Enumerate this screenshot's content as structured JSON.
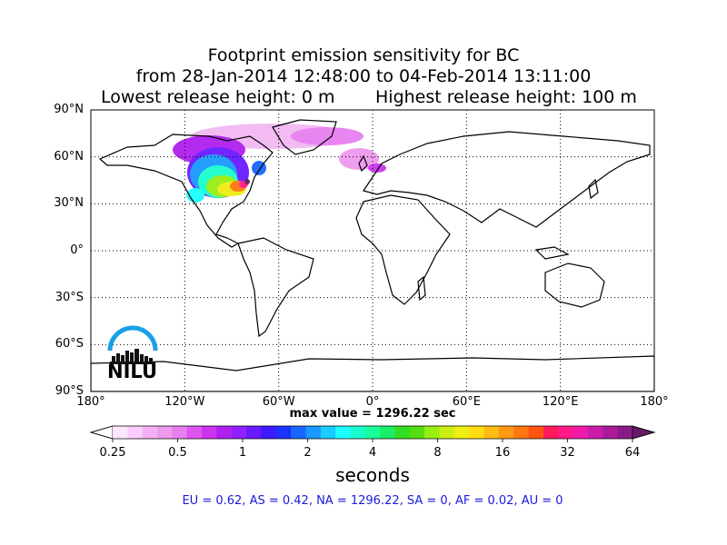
{
  "title": {
    "line1": "Footprint emission sensitivity for BC",
    "line2": "from 28-Jan-2014 12:48:00 to 04-Feb-2014 13:11:00",
    "line3": "Lowest release height: 0 m",
    "line4": "Highest release height: 100 m"
  },
  "map": {
    "lat_labels": [
      "90°N",
      "60°N",
      "30°N",
      "0°",
      "30°S",
      "60°S",
      "90°S"
    ],
    "lon_labels": [
      "180°",
      "120°W",
      "60°W",
      "0°",
      "60°E",
      "120°E",
      "180°"
    ],
    "max_value_text": "max value = 1296.22 sec",
    "grid": "dotted",
    "projection": "equirectangular"
  },
  "colorbar": {
    "tick_labels": [
      "0.25",
      "0.5",
      "1",
      "2",
      "4",
      "8",
      "16",
      "32",
      "64"
    ],
    "label": "seconds",
    "colors": [
      "#ffffff",
      "#ffe6ff",
      "#ffccff",
      "#f5b0f5",
      "#ee99ee",
      "#e680f0",
      "#dd55ee",
      "#cc33ee",
      "#b020f0",
      "#9020ff",
      "#6a1aff",
      "#3d1aff",
      "#1a33ff",
      "#1a66ff",
      "#1a99ff",
      "#1accff",
      "#1affff",
      "#1affcc",
      "#1aff99",
      "#1aee66",
      "#33dd22",
      "#55dd11",
      "#99ee11",
      "#ccee11",
      "#eeee11",
      "#ffdd11",
      "#ffbb11",
      "#ff9911",
      "#ff7711",
      "#ff5511",
      "#ff1a5c",
      "#ff1a88",
      "#ee1aaa",
      "#cc1aaa",
      "#aa1a99",
      "#881a88",
      "#661a66"
    ]
  },
  "regions_text": "EU = 0.62,  AS = 0.42,  NA = 1296.22,  SA = 0,  AF = 0.02,  AU = 0",
  "logo": {
    "text": "NILU",
    "arc_color": "#1aa0e8"
  }
}
